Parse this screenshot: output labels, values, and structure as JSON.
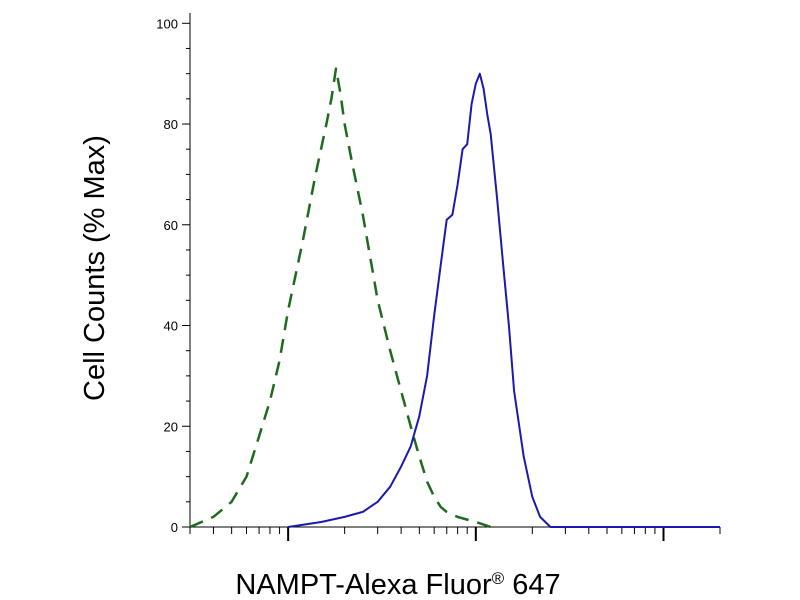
{
  "chart_data": {
    "type": "line",
    "title": "",
    "xlabel": "NAMPT-Alexa Fluor",
    "xlabel_mark": "®",
    "xlabel_suffix": " 647",
    "ylabel": "Cell Counts (% Max)",
    "x_scale": "log",
    "xlim": [
      0.3,
      200
    ],
    "ylim": [
      0,
      100
    ],
    "yticks": [
      0,
      20,
      40,
      60,
      80,
      100
    ],
    "ytick_labels": [
      "0",
      "20",
      "40",
      "60",
      "80",
      "100"
    ],
    "grid": false,
    "legend": "none",
    "series": [
      {
        "style": "dashed",
        "color": "#1e6b1e",
        "x": [
          0.3,
          0.4,
          0.5,
          0.6,
          0.7,
          0.8,
          0.9,
          1.0,
          1.2,
          1.4,
          1.6,
          1.7,
          1.8,
          1.9,
          2.0,
          2.2,
          2.5,
          3.0,
          3.5,
          4.0,
          4.5,
          5.0,
          5.5,
          6.0,
          6.5,
          7.0,
          8.0,
          10.0,
          12.0
        ],
        "y": [
          0,
          2,
          5,
          10,
          18,
          25,
          33,
          43,
          57,
          70,
          80,
          85,
          91,
          86,
          80,
          72,
          62,
          45,
          35,
          27,
          20,
          14,
          9,
          6,
          4,
          3,
          2,
          1,
          0
        ]
      },
      {
        "style": "solid",
        "color": "#1a1ab0",
        "x": [
          1.0,
          1.5,
          2.0,
          2.5,
          3.0,
          3.5,
          4.0,
          4.5,
          5.0,
          5.5,
          6.0,
          6.5,
          7.0,
          7.5,
          8.0,
          8.5,
          9.0,
          9.5,
          10.0,
          10.5,
          11.0,
          11.5,
          12.0,
          13.0,
          14.0,
          15.0,
          16.0,
          18.0,
          20.0,
          22.0,
          25.0,
          30.0,
          40.0,
          60.0,
          100.0,
          200.0
        ],
        "y": [
          0,
          1,
          2,
          3,
          5,
          8,
          12,
          16,
          22,
          30,
          42,
          52,
          61,
          62,
          68,
          75,
          76,
          84,
          88,
          90,
          87,
          82,
          78,
          65,
          52,
          40,
          27,
          14,
          6,
          2,
          0,
          0,
          0,
          0,
          0,
          0
        ]
      }
    ]
  }
}
